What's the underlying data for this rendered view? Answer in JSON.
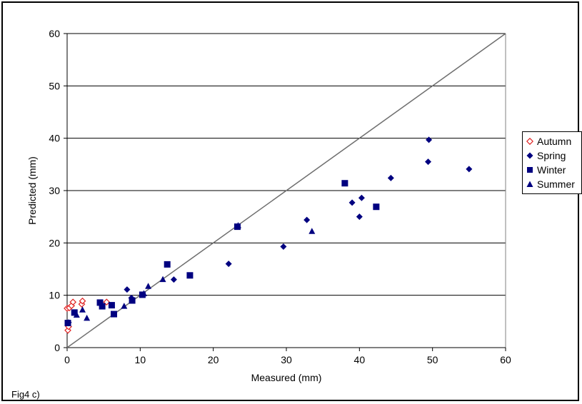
{
  "chart_data": {
    "type": "scatter",
    "title": "",
    "xlabel": "Measured (mm)",
    "ylabel": "Predicted (mm)",
    "xlim": [
      0,
      60
    ],
    "ylim": [
      0,
      60
    ],
    "xticks": [
      "0",
      "10",
      "20",
      "30",
      "40",
      "50",
      "60"
    ],
    "yticks": [
      "0",
      "10",
      "20",
      "30",
      "40",
      "50",
      "60"
    ],
    "grid": "horizontal",
    "reference_line": {
      "from": [
        0,
        0
      ],
      "to": [
        60,
        60
      ]
    },
    "legend_position": "right",
    "series": [
      {
        "name": "Autumn",
        "marker": "open-diamond",
        "color": "#e02020",
        "points": [
          [
            0.1,
            3.3
          ],
          [
            0.2,
            4.0
          ],
          [
            0.0,
            7.5
          ],
          [
            0.3,
            7.6
          ],
          [
            0.6,
            8.0
          ],
          [
            0.8,
            8.7
          ],
          [
            2.0,
            8.3
          ],
          [
            2.1,
            8.9
          ],
          [
            5.4,
            8.7
          ]
        ]
      },
      {
        "name": "Spring",
        "marker": "diamond",
        "color": "#000080",
        "points": [
          [
            0.2,
            4.8
          ],
          [
            8.2,
            11.1
          ],
          [
            8.8,
            9.5
          ],
          [
            14.6,
            13.0
          ],
          [
            22.1,
            16.0
          ],
          [
            29.6,
            19.3
          ],
          [
            32.8,
            24.4
          ],
          [
            39.0,
            27.7
          ],
          [
            40.0,
            25.0
          ],
          [
            40.3,
            28.6
          ],
          [
            44.3,
            32.4
          ],
          [
            49.4,
            35.5
          ],
          [
            49.5,
            39.7
          ],
          [
            55.0,
            34.1
          ]
        ]
      },
      {
        "name": "Winter",
        "marker": "square",
        "color": "#000080",
        "points": [
          [
            0.1,
            4.7
          ],
          [
            1.0,
            6.7
          ],
          [
            4.5,
            8.6
          ],
          [
            4.8,
            7.9
          ],
          [
            6.1,
            8.1
          ],
          [
            6.4,
            6.4
          ],
          [
            8.9,
            9.0
          ],
          [
            10.3,
            10.1
          ],
          [
            13.7,
            15.9
          ],
          [
            16.8,
            13.8
          ],
          [
            23.3,
            23.1
          ],
          [
            38.0,
            31.4
          ],
          [
            42.3,
            26.9
          ]
        ]
      },
      {
        "name": "Summer",
        "marker": "triangle",
        "color": "#000080",
        "points": [
          [
            1.3,
            6.2
          ],
          [
            2.1,
            7.2
          ],
          [
            2.7,
            5.6
          ],
          [
            7.8,
            7.9
          ],
          [
            10.5,
            10.3
          ],
          [
            11.1,
            11.7
          ],
          [
            13.1,
            13.0
          ],
          [
            23.4,
            23.3
          ],
          [
            33.5,
            22.2
          ]
        ]
      }
    ]
  },
  "legend": {
    "items": [
      {
        "label": "Autumn"
      },
      {
        "label": "Spring"
      },
      {
        "label": "Winter"
      },
      {
        "label": "Summer"
      }
    ]
  },
  "figure_label": "Fig4 c)"
}
